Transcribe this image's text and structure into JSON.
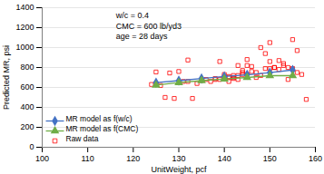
{
  "chart_data": {
    "type": "line",
    "xlabel": "UnitWeight, pcf",
    "ylabel": "Predicted MR, psi",
    "xlim": [
      100,
      160
    ],
    "ylim": [
      0,
      1400
    ],
    "xticks": [
      100,
      110,
      120,
      130,
      140,
      150,
      160
    ],
    "yticks": [
      0,
      200,
      400,
      600,
      800,
      1000,
      1200,
      1400
    ],
    "grid": "y",
    "legend": "lower left",
    "annotations": [
      "w/c = 0.4",
      "CMC = 600 lb/yd3",
      "age = 28 days"
    ],
    "series": [
      {
        "name": "MR model as f(w/c)",
        "type": "line",
        "color": "#4472C4",
        "marker": "diamond",
        "x": [
          125,
          130,
          135,
          140,
          145,
          150,
          155
        ],
        "values": [
          648,
          668,
          690,
          710,
          727,
          748,
          775
        ]
      },
      {
        "name": "MR model as f(CMC)",
        "type": "line",
        "color": "#70AD47",
        "marker": "triangle",
        "x": [
          125,
          130,
          135,
          140,
          145,
          150,
          155
        ],
        "values": [
          623,
          648,
          668,
          685,
          700,
          718,
          718
        ]
      },
      {
        "name": "Raw data",
        "type": "scatter",
        "color": "#FF0000",
        "marker": "square",
        "x": [
          124,
          125,
          125,
          126,
          127,
          128,
          129,
          130,
          131,
          132,
          132,
          133,
          134,
          135,
          136,
          137,
          138,
          138,
          139,
          139,
          140,
          140,
          140,
          141,
          141,
          141,
          142,
          142,
          142,
          143,
          143,
          143,
          144,
          144,
          144,
          145,
          145,
          145,
          146,
          146,
          147,
          147,
          148,
          148,
          149,
          149,
          150,
          150,
          150,
          151,
          151,
          152,
          152,
          153,
          153,
          154,
          154,
          155,
          155,
          156,
          156,
          157,
          158
        ],
        "values": [
          630,
          755,
          640,
          620,
          500,
          745,
          490,
          760,
          660,
          660,
          875,
          490,
          640,
          670,
          680,
          660,
          680,
          690,
          680,
          860,
          710,
          730,
          690,
          710,
          660,
          700,
          700,
          690,
          720,
          720,
          820,
          680,
          730,
          770,
          750,
          820,
          880,
          730,
          760,
          810,
          750,
          700,
          720,
          1000,
          790,
          940,
          790,
          860,
          1050,
          800,
          800,
          870,
          780,
          820,
          840,
          800,
          680,
          790,
          1080,
          750,
          970,
          730,
          480
        ]
      }
    ]
  }
}
